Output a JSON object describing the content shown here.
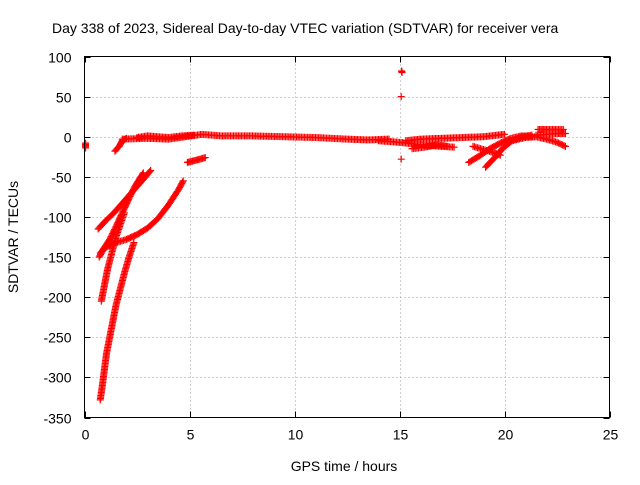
{
  "chart_data": {
    "type": "scatter",
    "title": "Day 338 of 2023, Sidereal Day-to-day VTEC variation (SDTVAR) for receiver vera",
    "xlabel": "GPS time / hours",
    "ylabel": "SDTVAR / TECUs",
    "xlim": [
      0,
      25
    ],
    "ylim": [
      -350,
      100
    ],
    "xticks": [
      0,
      5,
      10,
      15,
      20,
      25
    ],
    "yticks": [
      100,
      50,
      0,
      -50,
      -100,
      -150,
      -200,
      -250,
      -300,
      -350
    ],
    "xtick_labels": [
      "0",
      "5",
      "10",
      "15",
      "20",
      "25"
    ],
    "ytick_labels": [
      "100",
      "50",
      "0",
      "-50",
      "-100",
      "-150",
      "-200",
      "-250",
      "-300",
      "-350"
    ],
    "grid": true,
    "marker": "plus",
    "series": [
      {
        "name": "SDTVAR",
        "color": "#ff0000",
        "tracks": [
          [
            [
              0.05,
              -8
            ],
            [
              0.05,
              -14
            ]
          ],
          [
            [
              0.65,
              -115
            ],
            [
              1.0,
              -105
            ],
            [
              1.4,
              -95
            ],
            [
              1.9,
              -80
            ],
            [
              2.4,
              -65
            ],
            [
              2.9,
              -50
            ],
            [
              3.15,
              -42
            ]
          ],
          [
            [
              0.7,
              -150
            ],
            [
              0.9,
              -140
            ],
            [
              1.2,
              -128
            ],
            [
              1.5,
              -112
            ],
            [
              1.8,
              -95
            ],
            [
              2.1,
              -78
            ],
            [
              2.4,
              -62
            ],
            [
              2.8,
              -45
            ]
          ],
          [
            [
              0.75,
              -145
            ],
            [
              1.0,
              -138
            ],
            [
              1.5,
              -132
            ],
            [
              2.0,
              -128
            ],
            [
              2.5,
              -122
            ],
            [
              3.0,
              -114
            ],
            [
              3.5,
              -102
            ],
            [
              4.0,
              -85
            ],
            [
              4.5,
              -65
            ],
            [
              4.7,
              -55
            ]
          ],
          [
            [
              0.8,
              -205
            ],
            [
              0.95,
              -185
            ],
            [
              1.1,
              -165
            ],
            [
              1.3,
              -145
            ],
            [
              1.5,
              -125
            ],
            [
              1.7,
              -110
            ],
            [
              1.9,
              -95
            ]
          ],
          [
            [
              0.75,
              -328
            ],
            [
              0.85,
              -310
            ],
            [
              0.95,
              -290
            ],
            [
              1.05,
              -270
            ],
            [
              1.2,
              -250
            ],
            [
              1.35,
              -230
            ],
            [
              1.5,
              -210
            ],
            [
              1.7,
              -190
            ],
            [
              1.9,
              -170
            ],
            [
              2.1,
              -152
            ],
            [
              2.35,
              -132
            ]
          ],
          [
            [
              1.45,
              -18
            ],
            [
              1.65,
              -12
            ],
            [
              1.8,
              -5
            ],
            [
              2.0,
              -2
            ]
          ],
          [
            [
              1.8,
              -3
            ],
            [
              3.0,
              -2
            ],
            [
              4.0,
              -3
            ],
            [
              4.8,
              0
            ],
            [
              5.6,
              3
            ],
            [
              6.5,
              1
            ],
            [
              8.0,
              1
            ],
            [
              9.5,
              0
            ],
            [
              11.0,
              -1
            ],
            [
              12.5,
              -3
            ],
            [
              13.5,
              -4
            ],
            [
              14.5,
              -3
            ]
          ],
          [
            [
              2.5,
              -1
            ],
            [
              3.0,
              1
            ],
            [
              3.5,
              0
            ],
            [
              4.0,
              -1
            ],
            [
              4.6,
              1
            ],
            [
              5.2,
              2
            ]
          ],
          [
            [
              4.9,
              -32
            ],
            [
              5.2,
              -30
            ],
            [
              5.5,
              -28
            ],
            [
              5.75,
              -26
            ]
          ],
          [
            [
              15.1,
              82
            ],
            [
              15.12,
              80
            ]
          ],
          [
            [
              15.08,
              50
            ]
          ],
          [
            [
              15.08,
              -28
            ]
          ],
          [
            [
              14.0,
              -5
            ],
            [
              15.0,
              -7
            ],
            [
              16.0,
              -10
            ],
            [
              17.0,
              -12
            ],
            [
              17.6,
              -13
            ]
          ],
          [
            [
              15.3,
              -5
            ],
            [
              16.0,
              -3
            ],
            [
              17.0,
              -2
            ],
            [
              18.0,
              -1
            ],
            [
              19.0,
              0
            ],
            [
              20.0,
              3
            ]
          ],
          [
            [
              15.6,
              -15
            ],
            [
              16.2,
              -13
            ],
            [
              16.8,
              -10
            ],
            [
              17.3,
              -12
            ]
          ],
          [
            [
              18.3,
              -32
            ],
            [
              18.8,
              -24
            ],
            [
              19.3,
              -15
            ],
            [
              19.8,
              -8
            ],
            [
              20.3,
              -2
            ],
            [
              20.8,
              1
            ],
            [
              21.3,
              0
            ]
          ],
          [
            [
              19.1,
              -38
            ],
            [
              19.5,
              -27
            ],
            [
              19.9,
              -15
            ],
            [
              20.3,
              -6
            ],
            [
              20.8,
              0
            ],
            [
              21.3,
              2
            ]
          ],
          [
            [
              18.5,
              -12
            ],
            [
              19.0,
              -16
            ],
            [
              19.5,
              -20
            ],
            [
              19.8,
              -23
            ]
          ],
          [
            [
              20.5,
              -4
            ],
            [
              21.0,
              -1
            ],
            [
              21.5,
              0
            ],
            [
              22.0,
              -3
            ],
            [
              22.5,
              -7
            ],
            [
              22.9,
              -12
            ]
          ],
          [
            [
              21.6,
              9
            ],
            [
              22.0,
              9
            ],
            [
              22.5,
              9
            ],
            [
              22.8,
              9
            ]
          ],
          [
            [
              21.5,
              2
            ],
            [
              22.0,
              3
            ],
            [
              22.5,
              4
            ],
            [
              22.9,
              4
            ]
          ]
        ]
      }
    ]
  }
}
